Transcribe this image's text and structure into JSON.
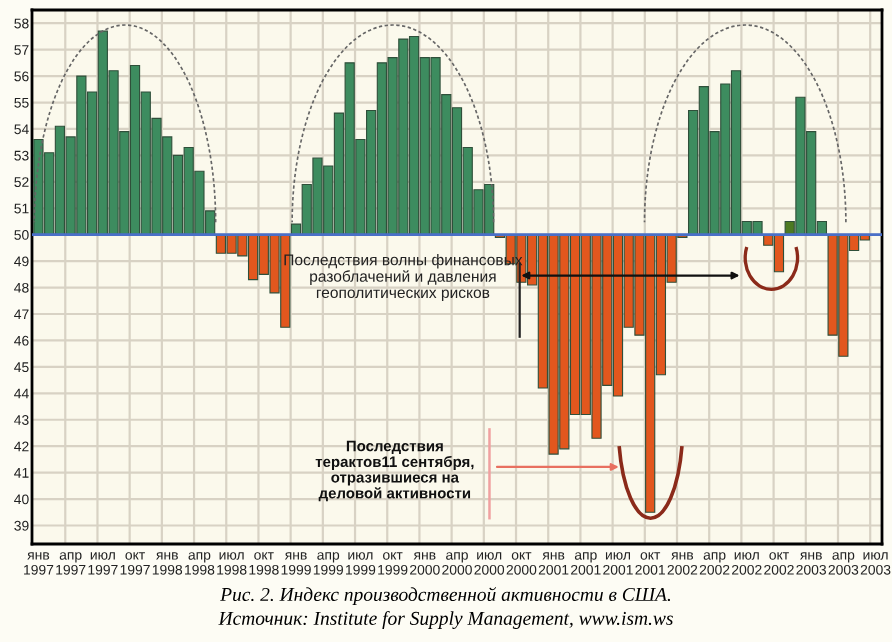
{
  "chart_data": {
    "type": "bar",
    "title": "Рис. 2. Индекс производственной активности в США.",
    "subtitle": "Источник: Institute for Supply Management, www.ism.ws",
    "categories": [
      "янв\n1997",
      null,
      null,
      "апр\n1997",
      null,
      null,
      "июл\n1997",
      null,
      null,
      "окт\n1997",
      null,
      null,
      "янв\n1998",
      null,
      null,
      "апр\n1998",
      null,
      null,
      "июл\n1998",
      null,
      null,
      "окт\n1998",
      null,
      null,
      "янв\n1999",
      null,
      null,
      "апр\n1999",
      null,
      null,
      "июл\n1999",
      null,
      null,
      "окт\n1999",
      null,
      null,
      "янв\n2000",
      null,
      null,
      "апр\n2000",
      null,
      null,
      "июл\n2000",
      null,
      null,
      "окт\n2000",
      null,
      null,
      "янв\n2001",
      null,
      null,
      "апр\n2001",
      null,
      null,
      "июл\n2001",
      null,
      null,
      "окт\n2001",
      null,
      null,
      "янв\n2002",
      null,
      null,
      "апр\n2002",
      null,
      null,
      "июл\n2002",
      null,
      null,
      "окт\n2002",
      null,
      null,
      "янв\n2003",
      null,
      null,
      "апр\n2003",
      null,
      null,
      "июл\n2003"
    ],
    "base": [
      50,
      50,
      50,
      50,
      50,
      50,
      50,
      50,
      50,
      50,
      50,
      50,
      50,
      50,
      50,
      50,
      50,
      50,
      50,
      50,
      50,
      50,
      50,
      50,
      50,
      50,
      50,
      50,
      50,
      50,
      50,
      50,
      50,
      50,
      50,
      50,
      50,
      50,
      50,
      50,
      50,
      50,
      50,
      50,
      50,
      50,
      50,
      50,
      50,
      50,
      50,
      50,
      50,
      50,
      50,
      50,
      50,
      50,
      50,
      50,
      50,
      50,
      50,
      50,
      50,
      50,
      50,
      50,
      50,
      50,
      50,
      50,
      50,
      50,
      50,
      50,
      50,
      50,
      null
    ],
    "values": [
      3.6,
      3.1,
      4.1,
      3.7,
      6.0,
      5.4,
      7.7,
      6.2,
      3.9,
      6.4,
      5.4,
      4.4,
      3.7,
      3.0,
      3.3,
      2.4,
      0.9,
      -0.7,
      -0.7,
      -0.8,
      -1.7,
      -1.5,
      -2.2,
      -3.5,
      0.4,
      1.9,
      2.9,
      2.6,
      4.6,
      6.5,
      3.6,
      4.7,
      6.5,
      6.7,
      7.4,
      7.5,
      6.7,
      6.7,
      5.3,
      4.8,
      3.3,
      1.7,
      1.9,
      -0.1,
      -1.1,
      -1.8,
      -1.9,
      -5.8,
      -8.3,
      -8.1,
      -6.8,
      -6.8,
      -7.7,
      -5.7,
      -6.1,
      -3.5,
      -3.8,
      -10.5,
      -5.3,
      -1.8,
      -0.1,
      4.7,
      5.6,
      3.9,
      5.7,
      6.2,
      0.5,
      0.5,
      -0.4,
      -1.4,
      0.5,
      5.2,
      3.9,
      0.5,
      -3.8,
      -4.6,
      -0.6,
      -0.2,
      null
    ],
    "colors": [
      "#3d8c5f",
      "#3d8c5f",
      "#3d8c5f",
      "#3d8c5f",
      "#3d8c5f",
      "#3d8c5f",
      "#3d8c5f",
      "#3d8c5f",
      "#3d8c5f",
      "#3d8c5f",
      "#3d8c5f",
      "#3d8c5f",
      "#3d8c5f",
      "#3d8c5f",
      "#3d8c5f",
      "#3d8c5f",
      "#3d8c5f",
      "#e2571e",
      "#e2571e",
      "#e2571e",
      "#e2571e",
      "#e2571e",
      "#e2571e",
      "#e2571e",
      "#3d8c5f",
      "#3d8c5f",
      "#3d8c5f",
      "#3d8c5f",
      "#3d8c5f",
      "#3d8c5f",
      "#3d8c5f",
      "#3d8c5f",
      "#3d8c5f",
      "#3d8c5f",
      "#3d8c5f",
      "#3d8c5f",
      "#3d8c5f",
      "#3d8c5f",
      "#3d8c5f",
      "#3d8c5f",
      "#3d8c5f",
      "#3d8c5f",
      "#3d8c5f",
      "#e2571e",
      "#e2571e",
      "#e2571e",
      "#e2571e",
      "#e2571e",
      "#e2571e",
      "#e2571e",
      "#e2571e",
      "#e2571e",
      "#e2571e",
      "#e2571e",
      "#e2571e",
      "#e2571e",
      "#e2571e",
      "#e2571e",
      "#e2571e",
      "#e2571e",
      "#e2571e",
      "#3d8c5f",
      "#3d8c5f",
      "#3d8c5f",
      "#3d8c5f",
      "#3d8c5f",
      "#3d8c5f",
      "#3d8c5f",
      "#e2571e",
      "#e2571e",
      "#4d7a22",
      "#3d8c5f",
      "#3d8c5f",
      "#3d8c5f",
      "#e2571e",
      "#e2571e",
      "#e2571e",
      "#e2571e",
      null
    ],
    "ylim": [
      38.3,
      58.5
    ],
    "yticks": [
      39,
      40,
      41,
      42,
      43,
      44,
      45,
      46,
      47,
      48,
      49,
      50,
      51,
      52,
      53,
      54,
      55,
      56,
      57,
      58
    ],
    "grid": true,
    "ref_lines": [
      {
        "axis": "y",
        "value": 50,
        "color": "#4a6fc8"
      }
    ],
    "annotations": [
      "Последствия волны финансовых\nразоблачений и давления\nгеополитических рисков",
      "Последствия\nтерактов11 сентября,\nотразившиеся на\nделовой активности"
    ]
  }
}
